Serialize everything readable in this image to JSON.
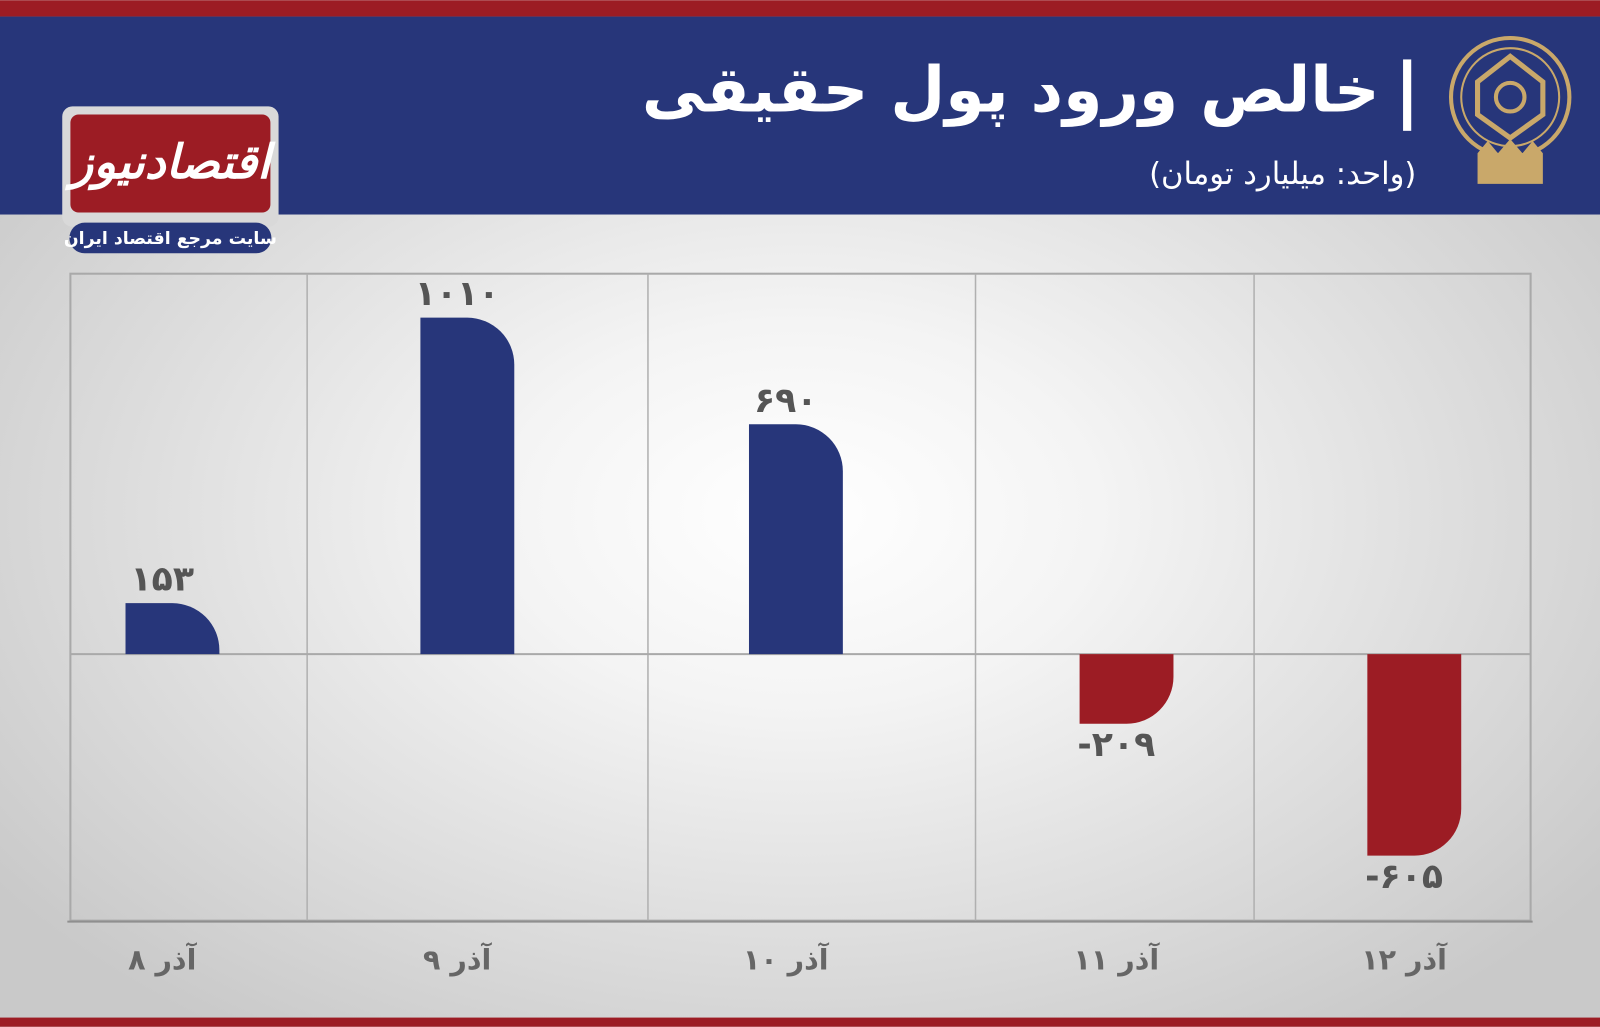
{
  "chart_data": {
    "type": "bar",
    "title": "خالص ورود پول حقیقی",
    "subtitle": "(واحد: میلیارد تومان)",
    "brand": "اقتصادنیوز",
    "brand_tagline": "سایت مرجع اقتصاد ایران",
    "categories": [
      "۸ آذر",
      "۹ آذر",
      "۱۰ آذر",
      "۱۱ آذر",
      "۱۲ آذر"
    ],
    "values": [
      153,
      1010,
      690,
      -209,
      -605
    ],
    "value_labels": [
      "۱۵۳",
      "۱۰۱۰",
      "۶۹۰",
      "-۲۰۹",
      "-۶۰۵"
    ],
    "positive_color": "#27367a",
    "negative_color": "#9c1c24",
    "ylim": [
      -800,
      1142
    ]
  }
}
